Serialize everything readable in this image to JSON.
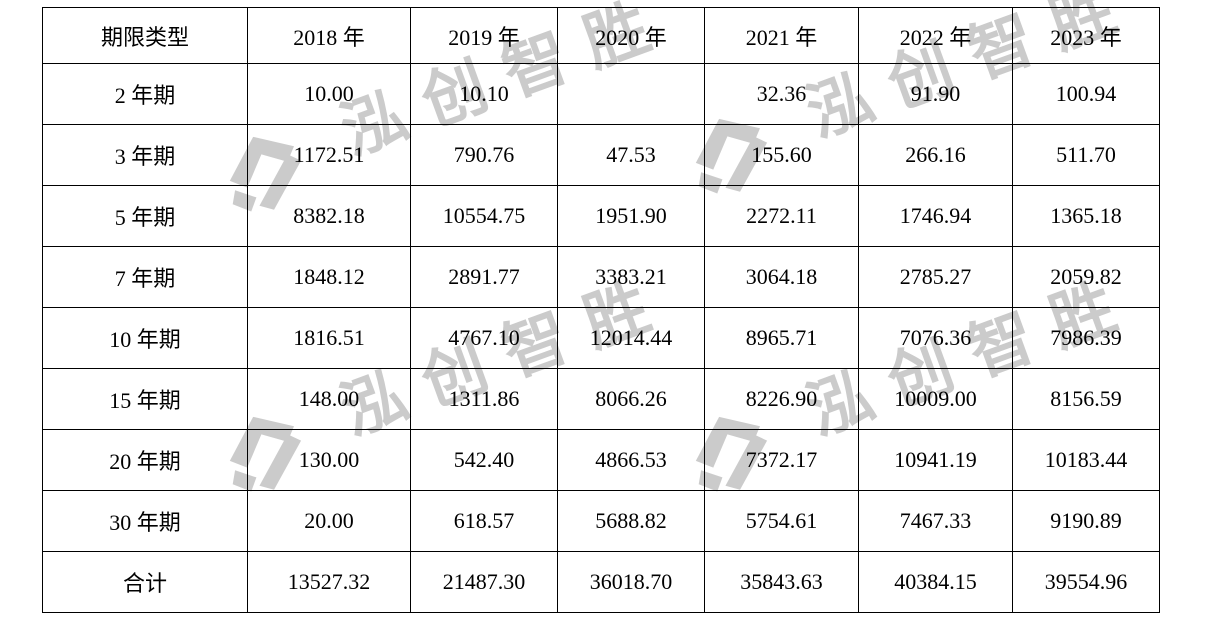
{
  "watermark": {
    "text": "泓创智胜",
    "color": "#c3c3c3"
  },
  "table": {
    "header": [
      "期限类型",
      "2018 年",
      "2019 年",
      "2020 年",
      "2021 年",
      "2022 年",
      "2023 年"
    ],
    "rows": [
      {
        "label": "2 年期",
        "values": [
          "10.00",
          "10.10",
          "",
          "32.36",
          "91.90",
          "100.94"
        ]
      },
      {
        "label": "3 年期",
        "values": [
          "1172.51",
          "790.76",
          "47.53",
          "155.60",
          "266.16",
          "511.70"
        ]
      },
      {
        "label": "5 年期",
        "values": [
          "8382.18",
          "10554.75",
          "1951.90",
          "2272.11",
          "1746.94",
          "1365.18"
        ]
      },
      {
        "label": "7 年期",
        "values": [
          "1848.12",
          "2891.77",
          "3383.21",
          "3064.18",
          "2785.27",
          "2059.82"
        ]
      },
      {
        "label": "10 年期",
        "values": [
          "1816.51",
          "4767.10",
          "12014.44",
          "8965.71",
          "7076.36",
          "7986.39"
        ]
      },
      {
        "label": "15 年期",
        "values": [
          "148.00",
          "1311.86",
          "8066.26",
          "8226.90",
          "10009.00",
          "8156.59"
        ]
      },
      {
        "label": "20 年期",
        "values": [
          "130.00",
          "542.40",
          "4866.53",
          "7372.17",
          "10941.19",
          "10183.44"
        ]
      },
      {
        "label": "30 年期",
        "values": [
          "20.00",
          "618.57",
          "5688.82",
          "5754.61",
          "7467.33",
          "9190.89"
        ]
      },
      {
        "label": "合计",
        "values": [
          "13527.32",
          "21487.30",
          "36018.70",
          "35843.63",
          "40384.15",
          "39554.96"
        ]
      }
    ]
  }
}
